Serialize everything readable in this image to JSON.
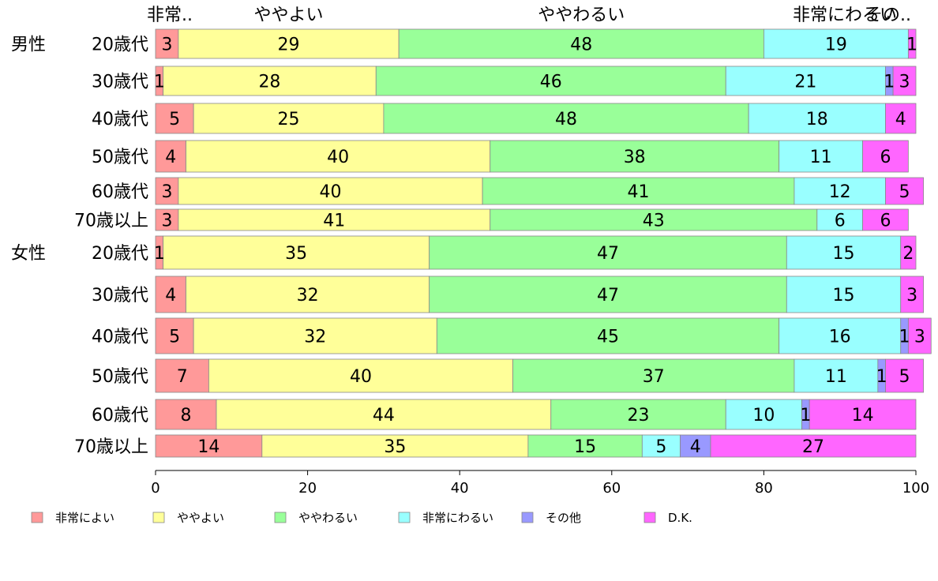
{
  "chart_data": {
    "type": "bar",
    "orientation": "horizontal",
    "stacked": true,
    "xlim": [
      0,
      100
    ],
    "x_ticks": [
      "0",
      "20",
      "40",
      "60",
      "80",
      "100"
    ],
    "top_labels": [
      "非常..",
      "ややよい",
      "ややわるい",
      "非常にわるい",
      "その.."
    ],
    "groups": [
      {
        "name": "男性",
        "row": 0
      },
      {
        "name": "女性",
        "row": 6
      }
    ],
    "categories": [
      "20歳代",
      "30歳代",
      "40歳代",
      "50歳代",
      "60歳代",
      "70歳以上",
      "20歳代",
      "30歳代",
      "40歳代",
      "50歳代",
      "60歳代",
      "70歳以上"
    ],
    "series": [
      {
        "name": "非常によい",
        "color": "#ff9999",
        "values": [
          3,
          1,
          5,
          4,
          3,
          3,
          1,
          4,
          5,
          7,
          8,
          14
        ]
      },
      {
        "name": "ややよい",
        "color": "#ffff99",
        "values": [
          29,
          28,
          25,
          40,
          40,
          41,
          35,
          32,
          32,
          40,
          44,
          35
        ]
      },
      {
        "name": "ややわるい",
        "color": "#99ff99",
        "values": [
          48,
          46,
          48,
          38,
          41,
          43,
          47,
          47,
          45,
          37,
          23,
          15
        ]
      },
      {
        "name": "非常にわるい",
        "color": "#99ffff",
        "values": [
          19,
          21,
          18,
          11,
          12,
          6,
          15,
          15,
          16,
          11,
          10,
          5
        ]
      },
      {
        "name": "その他",
        "color": "#9999ff",
        "values": [
          0,
          1,
          0,
          0,
          0,
          0,
          0,
          0,
          1,
          1,
          1,
          4
        ]
      },
      {
        "name": "D.K.",
        "color": "#ff66ff",
        "values": [
          1,
          3,
          4,
          6,
          5,
          6,
          2,
          3,
          3,
          5,
          14,
          27
        ]
      }
    ],
    "data_labels": [
      [
        "3",
        "29",
        "48",
        "19",
        "",
        "1"
      ],
      [
        "1",
        "28",
        "46",
        "21",
        "1",
        "3"
      ],
      [
        "5",
        "25",
        "48",
        "18",
        "",
        "4"
      ],
      [
        "4",
        "40",
        "38",
        "11",
        "",
        "6"
      ],
      [
        "3",
        "40",
        "41",
        "12",
        "",
        "5"
      ],
      [
        "3",
        "41",
        "43",
        "6",
        "",
        "6"
      ],
      [
        "1",
        "35",
        "47",
        "15",
        "",
        "2"
      ],
      [
        "4",
        "32",
        "47",
        "15",
        "",
        "3"
      ],
      [
        "5",
        "32",
        "45",
        "16",
        "1",
        "3"
      ],
      [
        "7",
        "40",
        "37",
        "11",
        "1",
        "5"
      ],
      [
        "8",
        "44",
        "23",
        "10",
        "1",
        "14"
      ],
      [
        "14",
        "35",
        "15",
        "5",
        "4",
        "27"
      ]
    ],
    "legend": [
      "非常によい",
      "ややよい",
      "ややわるい",
      "非常にわるい",
      "その他",
      "D.K."
    ],
    "legend_position": "bottom"
  }
}
